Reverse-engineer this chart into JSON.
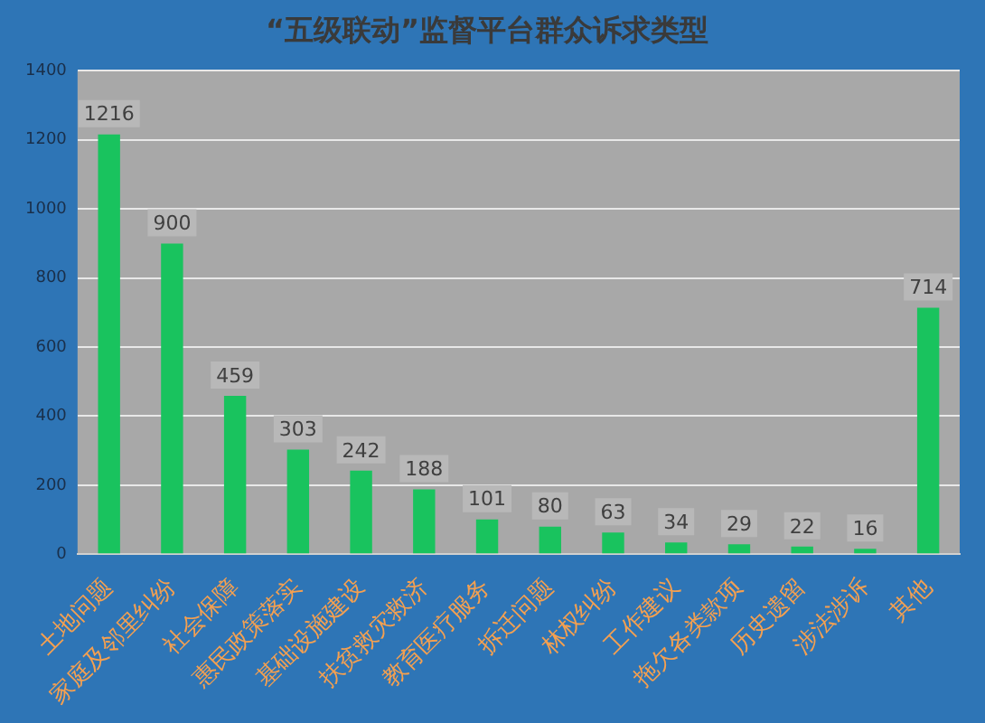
{
  "chart_data": {
    "type": "bar",
    "title": "“五级联动”监督平台群众诉求类型",
    "categories": [
      "土地问题",
      "家庭及邻里纠纷",
      "社会保障",
      "惠民政策落实",
      "基础设施建设",
      "扶贫救灾救济",
      "教育医疗服务",
      "拆迁问题",
      "林权纠纷",
      "工作建议",
      "拖欠各类款项",
      "历史遗留",
      "涉法涉诉",
      "其他"
    ],
    "values": [
      1216,
      900,
      459,
      303,
      242,
      188,
      101,
      80,
      63,
      34,
      29,
      22,
      16,
      714
    ],
    "color": "#19c35e",
    "ylim": [
      0,
      1400
    ],
    "yticks": [
      0,
      200,
      400,
      600,
      800,
      1000,
      1200,
      1400
    ],
    "grid": "y",
    "data_labels": true,
    "legend": false
  }
}
